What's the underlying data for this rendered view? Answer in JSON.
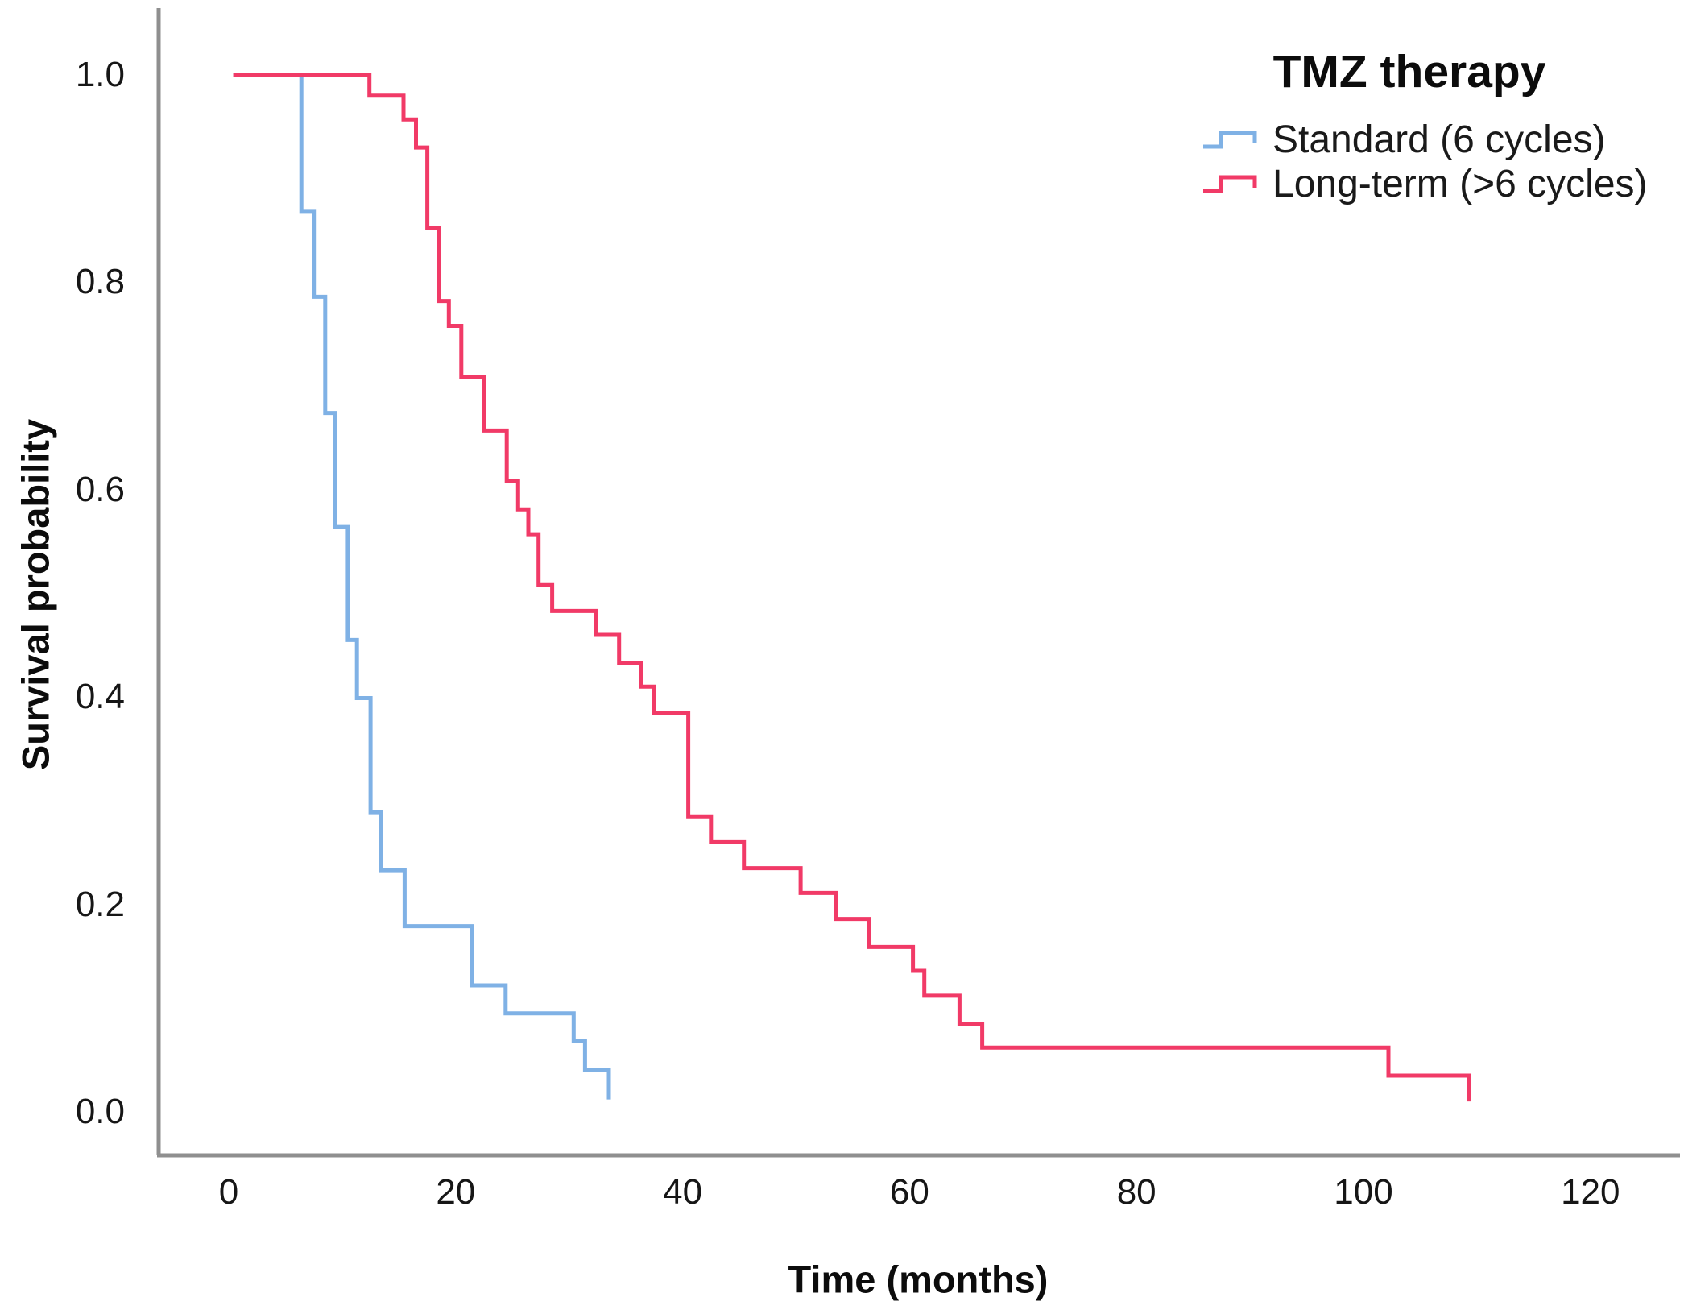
{
  "figure": {
    "background": "#ffffff",
    "axis_color": "#8f8f8f",
    "text_color": "#111111"
  },
  "legend": {
    "title": "TMZ therapy",
    "items": [
      {
        "label": "Standard (6 cycles)",
        "color": "#7FB1E5"
      },
      {
        "label": "Long-term (>6 cycles)",
        "color": "#F13A67"
      }
    ]
  },
  "chart_data": {
    "type": "line",
    "subtype": "kaplan-meier-step-survival",
    "title": "TMZ therapy",
    "xlabel": "Time (months)",
    "ylabel": "Survival probability",
    "xlim": [
      0,
      120
    ],
    "ylim": [
      0.0,
      1.0
    ],
    "grid": false,
    "legend_position": "top-right",
    "x_ticks": [
      {
        "label": "0",
        "value": 0
      },
      {
        "label": "20",
        "value": 20
      },
      {
        "label": "40",
        "value": 40
      },
      {
        "label": "60",
        "value": 60
      },
      {
        "label": "80",
        "value": 80
      },
      {
        "label": "100",
        "value": 100
      },
      {
        "label": "120",
        "value": 120
      }
    ],
    "y_ticks": [
      {
        "label": "1.0",
        "value": 1.0
      },
      {
        "label": "0.8",
        "value": 0.8
      },
      {
        "label": "0.6",
        "value": 0.6
      },
      {
        "label": "0.4",
        "value": 0.4
      },
      {
        "label": "0.2",
        "value": 0.2
      },
      {
        "label": "0.0",
        "value": 0.0
      }
    ],
    "series": [
      {
        "name": "Standard (6 cycles)",
        "color": "#7FB1E5",
        "points_time_months_vs_survival": [
          [
            0.4,
            1.0
          ],
          [
            6.4,
            0.868
          ],
          [
            7.5,
            0.786
          ],
          [
            8.5,
            0.674
          ],
          [
            9.4,
            0.564
          ],
          [
            10.5,
            0.455
          ],
          [
            11.3,
            0.399
          ],
          [
            12.5,
            0.289
          ],
          [
            13.4,
            0.233
          ],
          [
            15.5,
            0.179
          ],
          [
            21.4,
            0.122
          ],
          [
            24.4,
            0.095
          ],
          [
            30.4,
            0.068
          ],
          [
            31.4,
            0.04
          ],
          [
            33.5,
            0.012
          ]
        ]
      },
      {
        "name": "Long-term (>6 cycles)",
        "color": "#F13A67",
        "points_time_months_vs_survival": [
          [
            0.4,
            1.0
          ],
          [
            12.4,
            0.98
          ],
          [
            15.4,
            0.957
          ],
          [
            16.5,
            0.93
          ],
          [
            17.5,
            0.852
          ],
          [
            18.5,
            0.782
          ],
          [
            19.4,
            0.758
          ],
          [
            20.5,
            0.709
          ],
          [
            22.5,
            0.657
          ],
          [
            24.5,
            0.608
          ],
          [
            25.5,
            0.581
          ],
          [
            26.4,
            0.557
          ],
          [
            27.3,
            0.508
          ],
          [
            28.5,
            0.483
          ],
          [
            32.4,
            0.46
          ],
          [
            34.4,
            0.433
          ],
          [
            36.3,
            0.41
          ],
          [
            37.5,
            0.385
          ],
          [
            40.5,
            0.285
          ],
          [
            42.5,
            0.26
          ],
          [
            45.4,
            0.235
          ],
          [
            50.4,
            0.211
          ],
          [
            53.5,
            0.186
          ],
          [
            56.4,
            0.159
          ],
          [
            60.3,
            0.136
          ],
          [
            61.3,
            0.112
          ],
          [
            64.4,
            0.085
          ],
          [
            66.4,
            0.062
          ],
          [
            102.2,
            0.035
          ],
          [
            109.3,
            0.01
          ]
        ]
      }
    ]
  }
}
